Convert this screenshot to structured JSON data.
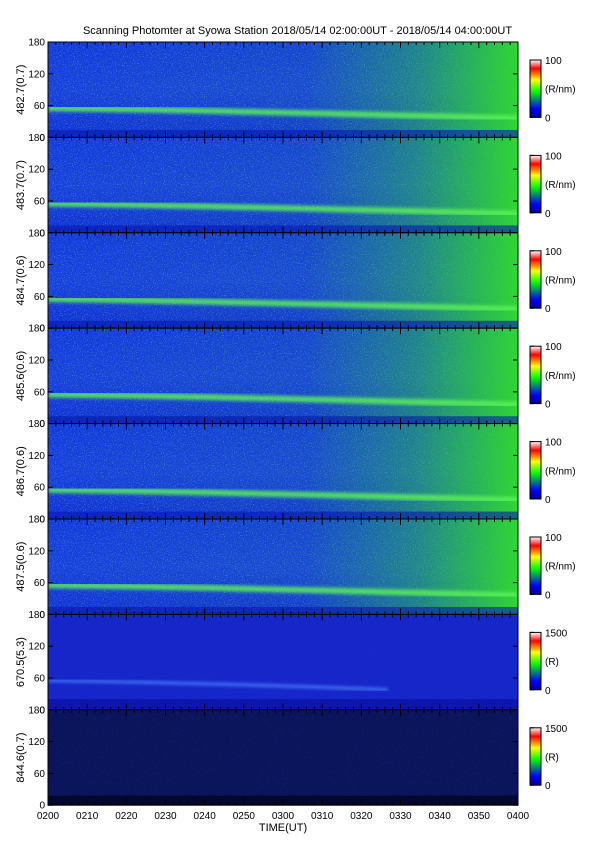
{
  "title": "Scanning Photomter at Syowa Station 2018/05/14 02:00:00UT - 2018/05/14 04:00:00UT",
  "xlabel": "TIME(UT)",
  "x_ticks": [
    "0200",
    "0210",
    "0220",
    "0230",
    "0240",
    "0250",
    "0300",
    "0310",
    "0320",
    "0330",
    "0340",
    "0350",
    "0400"
  ],
  "y_ticks": [
    "0",
    "60",
    "120",
    "180"
  ],
  "colors": {
    "low": "#0000ff",
    "mid": "#00ff00",
    "high": "#ff0000",
    "bg_dark": "#000050"
  },
  "chart_data": [
    {
      "type": "heatmap",
      "ylabel": "482.7(0.7)",
      "xlim": [
        "0200",
        "0400"
      ],
      "ylim": [
        0,
        180
      ],
      "colorbar": {
        "ticks": [
          "0",
          "100"
        ],
        "unit": "(R/nm)",
        "range": [
          0,
          100
        ]
      }
    },
    {
      "type": "heatmap",
      "ylabel": "483.7(0.7)",
      "xlim": [
        "0200",
        "0400"
      ],
      "ylim": [
        0,
        180
      ],
      "colorbar": {
        "ticks": [
          "0",
          "100"
        ],
        "unit": "(R/nm)",
        "range": [
          0,
          100
        ]
      }
    },
    {
      "type": "heatmap",
      "ylabel": "484.7(0.6)",
      "xlim": [
        "0200",
        "0400"
      ],
      "ylim": [
        0,
        180
      ],
      "colorbar": {
        "ticks": [
          "0",
          "100"
        ],
        "unit": "(R/nm)",
        "range": [
          0,
          100
        ]
      }
    },
    {
      "type": "heatmap",
      "ylabel": "485.6(0.6)",
      "xlim": [
        "0200",
        "0400"
      ],
      "ylim": [
        0,
        180
      ],
      "colorbar": {
        "ticks": [
          "0",
          "100"
        ],
        "unit": "(R/nm)",
        "range": [
          0,
          100
        ]
      }
    },
    {
      "type": "heatmap",
      "ylabel": "486.7(0.6)",
      "xlim": [
        "0200",
        "0400"
      ],
      "ylim": [
        0,
        180
      ],
      "colorbar": {
        "ticks": [
          "0",
          "100"
        ],
        "unit": "(R/nm)",
        "range": [
          0,
          100
        ]
      }
    },
    {
      "type": "heatmap",
      "ylabel": "487.5(0.6)",
      "xlim": [
        "0200",
        "0400"
      ],
      "ylim": [
        0,
        180
      ],
      "colorbar": {
        "ticks": [
          "0",
          "100"
        ],
        "unit": "(R/nm)",
        "range": [
          0,
          100
        ]
      }
    },
    {
      "type": "heatmap",
      "ylabel": "670.5(5.3)",
      "xlim": [
        "0200",
        "0400"
      ],
      "ylim": [
        0,
        180
      ],
      "colorbar": {
        "ticks": [
          "0",
          "1500"
        ],
        "unit": "(R)",
        "range": [
          0,
          1500
        ]
      }
    },
    {
      "type": "heatmap",
      "ylabel": "844.6(0.7)",
      "xlim": [
        "0200",
        "0400"
      ],
      "ylim": [
        0,
        180
      ],
      "colorbar": {
        "ticks": [
          "0",
          "1500"
        ],
        "unit": "(R)",
        "range": [
          0,
          1500
        ]
      }
    }
  ]
}
